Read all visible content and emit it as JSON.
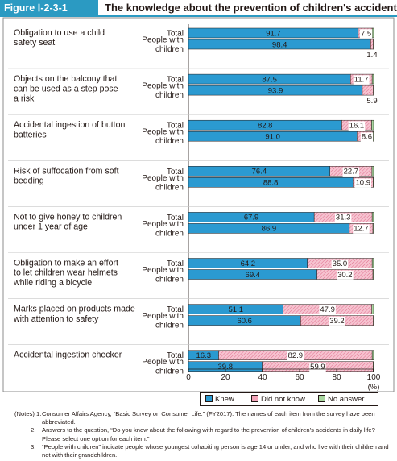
{
  "figure": {
    "label": "Figure Ⅰ-2-3-1",
    "title": "The knowledge about the prevention of children's accidents"
  },
  "colors": {
    "knew": "#2b9ad1",
    "did_not_know": "#f2a3b8",
    "no_answer": "#a8d7a0",
    "accent": "#2b9ac2"
  },
  "chart_data": {
    "type": "bar",
    "orientation": "horizontal",
    "stacked": true,
    "xlim": [
      0,
      100
    ],
    "xticks": [
      0,
      20,
      40,
      60,
      80,
      100
    ],
    "x_unit_label": "(%)",
    "legend_position": "bottom-right",
    "series_names": [
      "Knew",
      "Did not know",
      "No answer"
    ],
    "groups": [
      {
        "item": "Obligation to use a child safety seat",
        "rows": [
          {
            "label": "Total",
            "values": [
              91.7,
              7.5,
              0.8
            ]
          },
          {
            "label": "People with children",
            "values": [
              98.4,
              1.4,
              0.2
            ]
          }
        ],
        "label_lines": [
          "Obligation to use a child",
          "safety seat"
        ],
        "row2_extra": "1.4"
      },
      {
        "item": "Objects on the balcony that can be used as a step pose a risk",
        "rows": [
          {
            "label": "Total",
            "values": [
              87.5,
              11.7,
              0.8
            ]
          },
          {
            "label": "People with children",
            "values": [
              93.9,
              5.9,
              0.2
            ]
          }
        ],
        "label_lines": [
          "Objects on the balcony that",
          "can be used as a step pose",
          "a risk"
        ],
        "row2_extra": "5.9"
      },
      {
        "item": "Accidental ingestion of button batteries",
        "rows": [
          {
            "label": "Total",
            "values": [
              82.8,
              16.1,
              1.1
            ]
          },
          {
            "label": "People with children",
            "values": [
              91.0,
              8.6,
              0.4
            ]
          }
        ],
        "label_lines": [
          "Accidental ingestion of button",
          "batteries"
        ]
      },
      {
        "item": "Risk of suffocation from soft bedding",
        "rows": [
          {
            "label": "Total",
            "values": [
              76.4,
              22.7,
              0.9
            ]
          },
          {
            "label": "People with children",
            "values": [
              88.8,
              10.9,
              0.3
            ]
          }
        ],
        "label_lines": [
          "Risk of suffocation from soft",
          "bedding"
        ]
      },
      {
        "item": "Not to give honey to children under 1 year of age",
        "rows": [
          {
            "label": "Total",
            "values": [
              67.9,
              31.3,
              0.8
            ]
          },
          {
            "label": "People with children",
            "values": [
              86.9,
              12.7,
              0.4
            ]
          }
        ],
        "label_lines": [
          "Not to give honey to children",
          "under 1 year of age"
        ]
      },
      {
        "item": "Obligation to make an effort to let children wear helmets while riding a bicycle",
        "rows": [
          {
            "label": "Total",
            "values": [
              64.2,
              35.0,
              0.8
            ]
          },
          {
            "label": "People with children",
            "values": [
              69.4,
              30.2,
              0.4
            ]
          }
        ],
        "label_lines": [
          "Obligation to make an effort",
          "to let children wear helmets",
          "while riding a bicycle"
        ]
      },
      {
        "item": "Marks placed on products made with attention to safety",
        "rows": [
          {
            "label": "Total",
            "values": [
              51.1,
              47.9,
              1.0
            ]
          },
          {
            "label": "People with children",
            "values": [
              60.6,
              39.2,
              0.2
            ]
          }
        ],
        "label_lines": [
          "Marks placed on products made",
          "with attention to safety"
        ]
      },
      {
        "item": "Accidental ingestion checker",
        "rows": [
          {
            "label": "Total",
            "values": [
              16.3,
              82.9,
              0.8
            ]
          },
          {
            "label": "People with children",
            "values": [
              39.8,
              59.9,
              0.3
            ]
          }
        ],
        "label_lines": [
          "Accidental ingestion checker"
        ]
      }
    ],
    "row_label_total": "Total",
    "row_label_children": [
      "People with",
      "children"
    ]
  },
  "legend": {
    "knew": "Knew",
    "did_not_know": "Did not know",
    "no_answer": "No answer"
  },
  "notes": {
    "n1_num": "(Notes) 1.",
    "n1": "Consumer Affairs Agency, “Basic Survey on Consumer Life.” (FY2017).   The names of each item from the survey have been abbreviated.",
    "n2_num": "2.",
    "n2": "Answers to the question, “Do you know about the following with regard to the prevention of children's accidents in daily life? Please select one option for each item.”",
    "n3_num": "3.",
    "n3": "“People with children” indicate people whose youngest cohabiting person is age 14 or under, and who live with their children and not with their grandchildren."
  }
}
